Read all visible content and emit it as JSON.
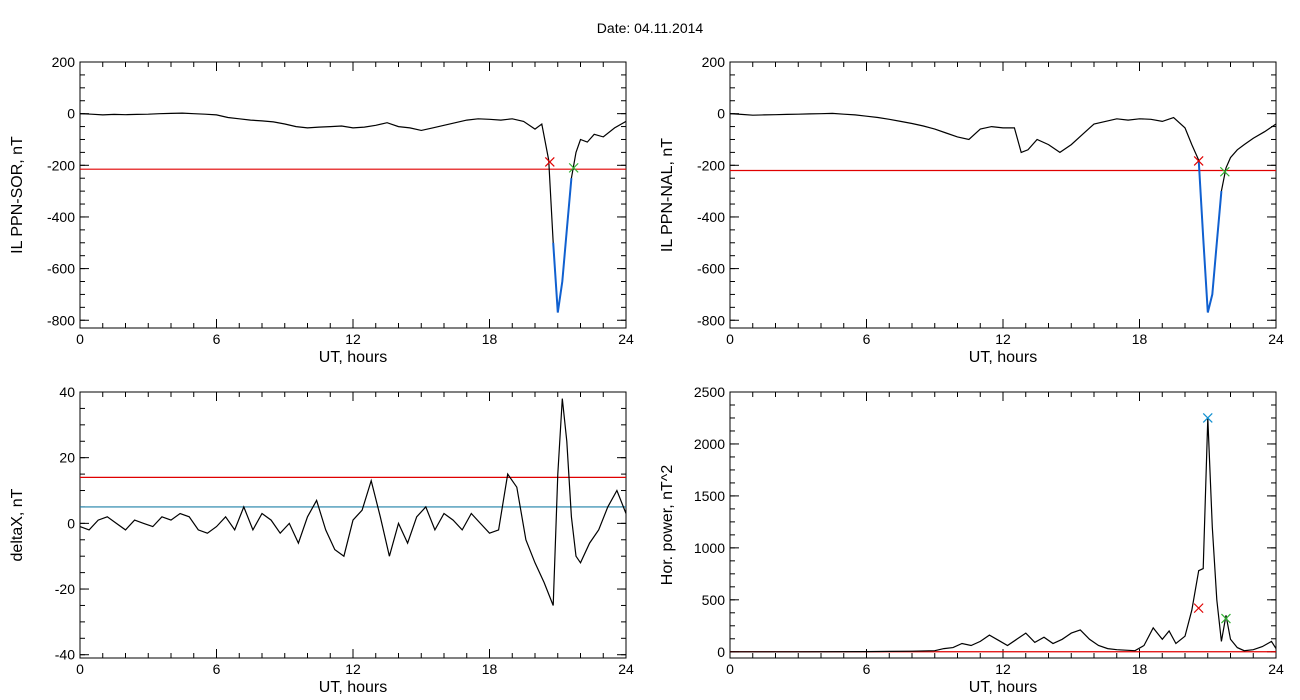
{
  "title": "Date:  04.11.2014",
  "colors": {
    "axis": "#000000",
    "trace": "#000000",
    "threshold": "#e00000",
    "band": "#1f80a8",
    "highlight": "#1060d0",
    "marker_red": "#e00000",
    "marker_green": "#30b030",
    "marker_blue": "#1090d0"
  },
  "chart_data": [
    {
      "id": "sor",
      "type": "line",
      "xlabel": "UT, hours",
      "ylabel": "IL PPN-SOR, nT",
      "xlim": [
        0,
        24
      ],
      "ylim": [
        -830,
        200
      ],
      "xticks": [
        0,
        6,
        12,
        18,
        24
      ],
      "yticks": [
        200,
        0,
        -200,
        -400,
        -600,
        -800
      ],
      "series": [
        {
          "x": [
            0,
            0.5,
            1,
            1.5,
            2,
            2.5,
            3,
            3.5,
            4,
            4.5,
            5,
            5.5,
            6,
            6.5,
            7,
            7.5,
            8,
            8.5,
            9,
            9.5,
            10,
            10.5,
            11,
            11.5,
            12,
            12.5,
            13,
            13.5,
            14,
            14.5,
            15,
            15.5,
            16,
            16.5,
            17,
            17.5,
            18,
            18.5,
            19,
            19.5,
            20,
            20.3,
            20.6,
            20.8,
            21.0,
            21.2,
            21.4,
            21.6,
            21.8,
            22.0,
            22.3,
            22.6,
            23.0,
            23.5,
            24
          ],
          "y": [
            0,
            -2,
            -5,
            -3,
            -4,
            -3,
            -2,
            0,
            1,
            2,
            0,
            -2,
            -5,
            -15,
            -20,
            -25,
            -28,
            -32,
            -40,
            -50,
            -55,
            -52,
            -50,
            -48,
            -55,
            -52,
            -45,
            -35,
            -50,
            -55,
            -65,
            -55,
            -45,
            -35,
            -25,
            -20,
            -22,
            -25,
            -20,
            -30,
            -60,
            -40,
            -180,
            -500,
            -770,
            -650,
            -450,
            -250,
            -150,
            -100,
            -110,
            -80,
            -90,
            -55,
            -30
          ]
        }
      ],
      "threshold": -215,
      "highlight_range": [
        20.65,
        21.7
      ],
      "markers": [
        {
          "x": 20.65,
          "y": -187,
          "color": "red"
        },
        {
          "x": 21.7,
          "y": -210,
          "color": "green"
        }
      ]
    },
    {
      "id": "nal",
      "type": "line",
      "xlabel": "UT, hours",
      "ylabel": "IL PPN-NAL, nT",
      "xlim": [
        0,
        24
      ],
      "ylim": [
        -830,
        200
      ],
      "xticks": [
        0,
        6,
        12,
        18,
        24
      ],
      "yticks": [
        200,
        0,
        -200,
        -400,
        -600,
        -800
      ],
      "series": [
        {
          "x": [
            0,
            0.5,
            1,
            1.5,
            2,
            2.5,
            3,
            3.5,
            4,
            4.5,
            5,
            5.5,
            6,
            6.5,
            7,
            7.5,
            8,
            8.5,
            9,
            9.5,
            10,
            10.5,
            11,
            11.5,
            12,
            12.5,
            12.8,
            13.1,
            13.5,
            14,
            14.5,
            15,
            15.5,
            16,
            16.5,
            17,
            17.5,
            18,
            18.5,
            19,
            19.5,
            20,
            20.3,
            20.6,
            20.8,
            21.0,
            21.2,
            21.4,
            21.6,
            21.8,
            22.0,
            22.3,
            22.6,
            23.0,
            23.5,
            24
          ],
          "y": [
            0,
            -3,
            -6,
            -5,
            -4,
            -3,
            -2,
            -1,
            0,
            1,
            -2,
            -5,
            -10,
            -15,
            -22,
            -30,
            -38,
            -48,
            -60,
            -75,
            -90,
            -100,
            -60,
            -50,
            -55,
            -55,
            -150,
            -140,
            -100,
            -120,
            -150,
            -120,
            -80,
            -40,
            -30,
            -20,
            -25,
            -20,
            -22,
            -30,
            -15,
            -55,
            -120,
            -180,
            -480,
            -770,
            -700,
            -500,
            -300,
            -210,
            -170,
            -140,
            -120,
            -95,
            -70,
            -40
          ]
        }
      ],
      "threshold": -220,
      "highlight_range": [
        20.6,
        21.75
      ],
      "markers": [
        {
          "x": 20.6,
          "y": -183,
          "color": "red"
        },
        {
          "x": 21.75,
          "y": -225,
          "color": "green"
        }
      ]
    },
    {
      "id": "deltax",
      "type": "line",
      "xlabel": "UT, hours",
      "ylabel": "deltaX, nT",
      "xlim": [
        0,
        24
      ],
      "ylim": [
        -41,
        40
      ],
      "xticks": [
        0,
        6,
        12,
        18,
        24
      ],
      "yticks": [
        40,
        20,
        0,
        -20,
        -40
      ],
      "series": [
        {
          "x": [
            0,
            0.4,
            0.8,
            1.2,
            1.6,
            2.0,
            2.4,
            2.8,
            3.2,
            3.6,
            4.0,
            4.4,
            4.8,
            5.2,
            5.6,
            6.0,
            6.4,
            6.8,
            7.2,
            7.6,
            8.0,
            8.4,
            8.8,
            9.2,
            9.6,
            10.0,
            10.4,
            10.8,
            11.2,
            11.6,
            12.0,
            12.4,
            12.8,
            13.2,
            13.6,
            14.0,
            14.4,
            14.8,
            15.2,
            15.6,
            16.0,
            16.4,
            16.8,
            17.2,
            17.6,
            18.0,
            18.4,
            18.8,
            19.2,
            19.6,
            20.0,
            20.4,
            20.8,
            21.0,
            21.2,
            21.4,
            21.6,
            21.8,
            22.0,
            22.4,
            22.8,
            23.2,
            23.6,
            24.0
          ],
          "y": [
            -1,
            -2,
            1,
            2,
            0,
            -2,
            1,
            0,
            -1,
            2,
            1,
            3,
            2,
            -2,
            -3,
            -1,
            2,
            -2,
            5,
            -2,
            3,
            1,
            -3,
            0,
            -6,
            2,
            7,
            -2,
            -8,
            -10,
            1,
            4,
            13,
            2,
            -10,
            0,
            -6,
            2,
            5,
            -2,
            3,
            1,
            -2,
            3,
            0,
            -3,
            -2,
            15,
            11,
            -5,
            -12,
            -18,
            -25,
            15,
            38,
            25,
            2,
            -10,
            -12,
            -6,
            -2,
            5,
            10,
            3
          ]
        }
      ],
      "threshold": 14,
      "baseline": 5
    },
    {
      "id": "power",
      "type": "line",
      "xlabel": "UT, hours",
      "ylabel": "Hor. power, nT^2",
      "xlim": [
        0,
        24
      ],
      "ylim": [
        -60,
        2500
      ],
      "xticks": [
        0,
        6,
        12,
        18,
        24
      ],
      "yticks": [
        0,
        500,
        1000,
        1500,
        2000,
        2500
      ],
      "series": [
        {
          "x": [
            0,
            3,
            6,
            8,
            9,
            9.4,
            9.8,
            10.2,
            10.6,
            11.0,
            11.4,
            11.8,
            12.2,
            12.6,
            13.0,
            13.4,
            13.8,
            14.2,
            14.6,
            15.0,
            15.4,
            15.8,
            16.2,
            16.6,
            17.0,
            17.4,
            17.8,
            18.2,
            18.6,
            19.0,
            19.3,
            19.6,
            20.0,
            20.3,
            20.6,
            20.8,
            21.0,
            21.2,
            21.4,
            21.6,
            21.8,
            22.0,
            22.3,
            22.6,
            23.0,
            23.4,
            23.8,
            24.0
          ],
          "y": [
            0,
            0,
            2,
            5,
            10,
            30,
            40,
            80,
            60,
            100,
            160,
            110,
            60,
            120,
            180,
            90,
            140,
            80,
            120,
            180,
            210,
            120,
            60,
            30,
            20,
            15,
            10,
            60,
            230,
            120,
            200,
            80,
            150,
            400,
            780,
            800,
            2250,
            1200,
            500,
            100,
            350,
            120,
            40,
            10,
            20,
            50,
            100,
            30
          ]
        }
      ],
      "threshold": 0,
      "markers": [
        {
          "x": 20.6,
          "y": 420,
          "color": "red"
        },
        {
          "x": 21.0,
          "y": 2250,
          "color": "blue"
        },
        {
          "x": 21.8,
          "y": 320,
          "color": "green"
        }
      ]
    }
  ]
}
